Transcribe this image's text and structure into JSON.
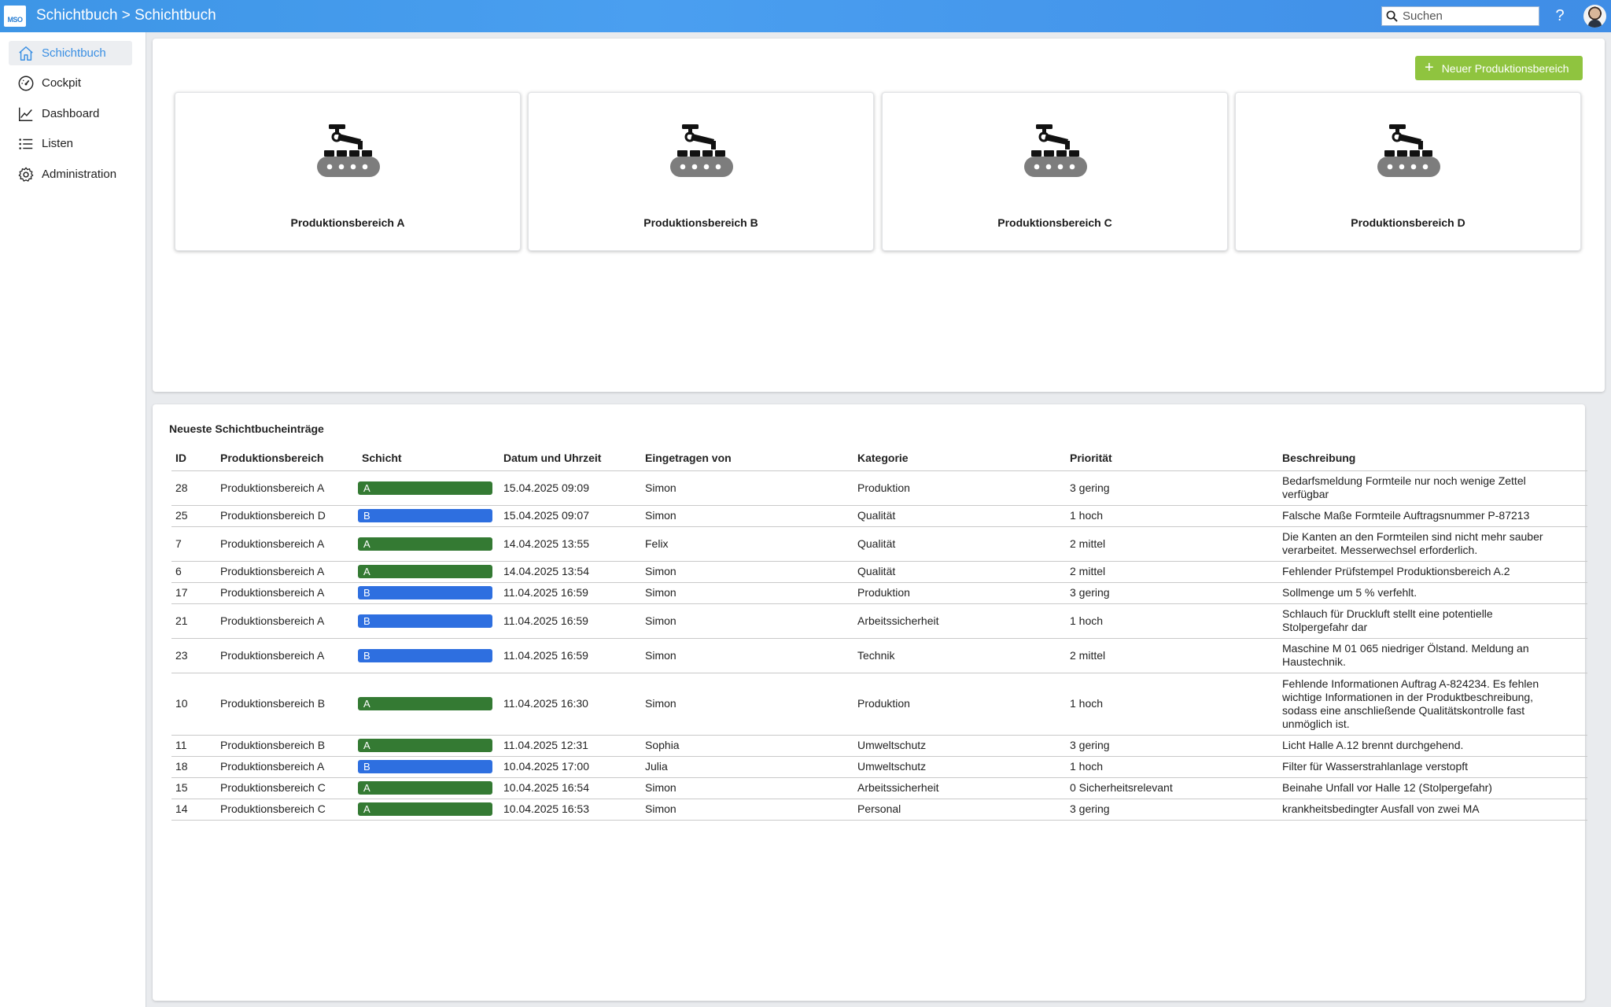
{
  "header": {
    "logo_text": "MSO",
    "title": "Schichtbuch > Schichtbuch",
    "search_placeholder": "Suchen",
    "help_label": "?"
  },
  "sidebar": {
    "items": [
      {
        "label": "Schichtbuch",
        "icon": "home-icon",
        "active": true
      },
      {
        "label": "Cockpit",
        "icon": "gauge-icon",
        "active": false
      },
      {
        "label": "Dashboard",
        "icon": "line-chart-icon",
        "active": false
      },
      {
        "label": "Listen",
        "icon": "list-icon",
        "active": false
      },
      {
        "label": "Administration",
        "icon": "gear-icon",
        "active": false
      }
    ]
  },
  "main": {
    "new_area_button": "Neuer Produktionsbereich",
    "areas": [
      {
        "label": "Produktionsbereich A",
        "icon": "conveyor-robot-icon"
      },
      {
        "label": "Produktionsbereich B",
        "icon": "conveyor-robot-icon"
      },
      {
        "label": "Produktionsbereich C",
        "icon": "conveyor-robot-icon"
      },
      {
        "label": "Produktionsbereich D",
        "icon": "conveyor-robot-icon"
      }
    ],
    "table_title": "Neueste Schichtbucheinträge",
    "columns": [
      "ID",
      "Produktionsbereich",
      "Schicht",
      "Datum und Uhrzeit",
      "Eingetragen von",
      "Kategorie",
      "Priorität",
      "Beschreibung"
    ],
    "rows": [
      {
        "id": "28",
        "area": "Produktionsbereich A",
        "shift": "A",
        "datetime": "15.04.2025 09:09",
        "by": "Simon",
        "category": "Produktion",
        "priority": "3 gering",
        "description": "Bedarfsmeldung Formteile nur noch wenige Zettel verfügbar"
      },
      {
        "id": "25",
        "area": "Produktionsbereich D",
        "shift": "B",
        "datetime": "15.04.2025 09:07",
        "by": "Simon",
        "category": "Qualität",
        "priority": "1 hoch",
        "description": "Falsche Maße Formteile Auftragsnummer P-87213"
      },
      {
        "id": "7",
        "area": "Produktionsbereich A",
        "shift": "A",
        "datetime": "14.04.2025 13:55",
        "by": "Felix",
        "category": "Qualität",
        "priority": "2 mittel",
        "description": "Die Kanten an den Formteilen sind nicht mehr sauber verarbeitet. Messerwechsel erforderlich."
      },
      {
        "id": "6",
        "area": "Produktionsbereich A",
        "shift": "A",
        "datetime": "14.04.2025 13:54",
        "by": "Simon",
        "category": "Qualität",
        "priority": "2 mittel",
        "description": "Fehlender Prüfstempel Produktionsbereich A.2"
      },
      {
        "id": "17",
        "area": "Produktionsbereich A",
        "shift": "B",
        "datetime": "11.04.2025 16:59",
        "by": "Simon",
        "category": "Produktion",
        "priority": "3 gering",
        "description": "Sollmenge um 5 % verfehlt."
      },
      {
        "id": "21",
        "area": "Produktionsbereich A",
        "shift": "B",
        "datetime": "11.04.2025 16:59",
        "by": "Simon",
        "category": "Arbeitssicherheit",
        "priority": "1 hoch",
        "description": "Schlauch für Druckluft stellt eine potentielle Stolpergefahr dar"
      },
      {
        "id": "23",
        "area": "Produktionsbereich A",
        "shift": "B",
        "datetime": "11.04.2025 16:59",
        "by": "Simon",
        "category": "Technik",
        "priority": "2 mittel",
        "description": "Maschine M 01 065 niedriger Ölstand. Meldung an Haustechnik."
      },
      {
        "id": "10",
        "area": "Produktionsbereich B",
        "shift": "A",
        "datetime": "11.04.2025 16:30",
        "by": "Simon",
        "category": "Produktion",
        "priority": "1 hoch",
        "description": "Fehlende Informationen Auftrag A-824234. Es fehlen wichtige Informationen in der Produktbeschreibung, sodass eine anschließende Qualitätskontrolle fast unmöglich ist."
      },
      {
        "id": "11",
        "area": "Produktionsbereich B",
        "shift": "A",
        "datetime": "11.04.2025 12:31",
        "by": "Sophia",
        "category": "Umweltschutz",
        "priority": "3 gering",
        "description": "Licht Halle A.12 brennt durchgehend."
      },
      {
        "id": "18",
        "area": "Produktionsbereich A",
        "shift": "B",
        "datetime": "10.04.2025 17:00",
        "by": "Julia",
        "category": "Umweltschutz",
        "priority": "1 hoch",
        "description": "Filter für Wasserstrahlanlage verstopft"
      },
      {
        "id": "15",
        "area": "Produktionsbereich C",
        "shift": "A",
        "datetime": "10.04.2025 16:54",
        "by": "Simon",
        "category": "Arbeitssicherheit",
        "priority": "0 Sicherheitsrelevant",
        "description": "Beinahe Unfall vor Halle 12 (Stolpergefahr)"
      },
      {
        "id": "14",
        "area": "Produktionsbereich C",
        "shift": "A",
        "datetime": "10.04.2025 16:53",
        "by": "Simon",
        "category": "Personal",
        "priority": "3 gering",
        "description": "krankheitsbedingter Ausfall von zwei MA"
      }
    ]
  },
  "colors": {
    "header": "#4a9ff0",
    "accent": "#3a8fe3",
    "button_green": "#8fc43f",
    "shift_a": "#347a33",
    "shift_b": "#2e6fe0"
  }
}
